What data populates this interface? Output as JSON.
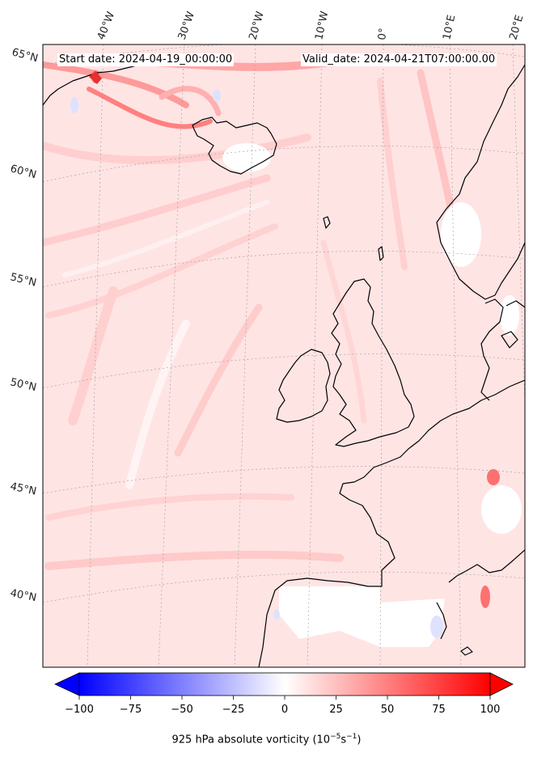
{
  "header": {
    "start_date": "Start date: 2024-04-19_00:00:00",
    "valid_date": "Valid_date: 2024-04-21T07:00:00.00"
  },
  "map": {
    "projection": "conic",
    "region": "North Atlantic / Western Europe",
    "field": "925 hPa absolute vorticity",
    "lon_labels": [
      "40°W",
      "30°W",
      "20°W",
      "10°W",
      "0°",
      "10°E",
      "20°E"
    ],
    "lat_labels": [
      "65°N",
      "60°N",
      "55°N",
      "50°N",
      "45°N",
      "40°N"
    ],
    "colormap": "bwr",
    "background_tint": "#ffe6e6"
  },
  "colorbar": {
    "min": -100,
    "max": 100,
    "extend": "both",
    "ticks": [
      "−100",
      "−75",
      "−50",
      "−25",
      "0",
      "25",
      "50",
      "75",
      "100"
    ],
    "label_main": "925 hPa absolute vorticity (10",
    "label_exp1": "−5",
    "label_mid": "s",
    "label_exp2": "−1",
    "label_end": ")",
    "color_min": "#0000ff",
    "color_mid": "#ffffff",
    "color_max": "#ff0000"
  }
}
